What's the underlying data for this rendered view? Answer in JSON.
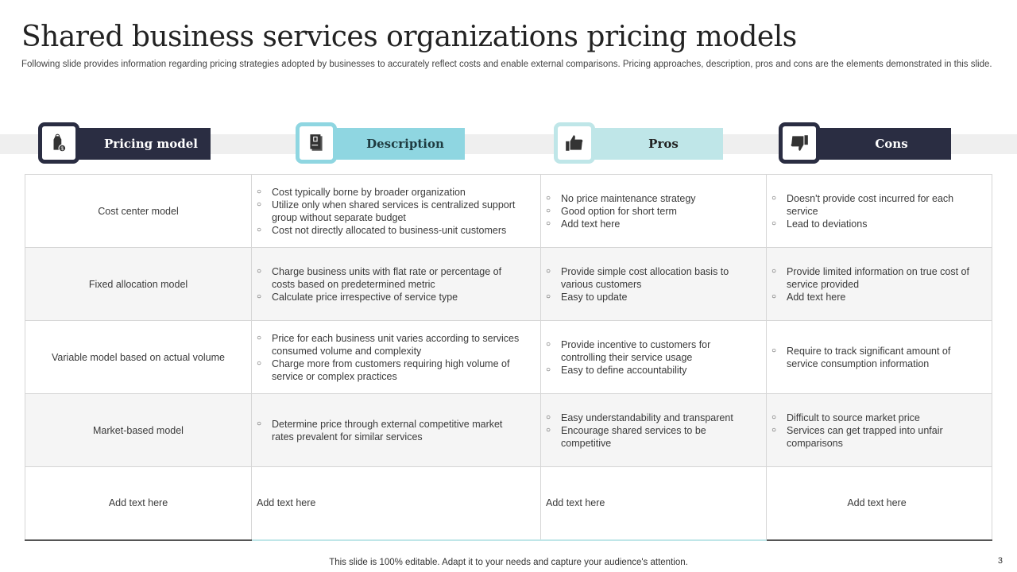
{
  "title": "Shared business services organizations pricing models",
  "subtitle": "Following slide provides information regarding pricing strategies adopted by businesses to accurately reflect costs and enable external comparisons. Pricing approaches, description, pros and cons are the elements demonstrated in this slide.",
  "headers": [
    {
      "label": "Pricing model",
      "icon": "price-tag-dollar-icon",
      "color": "#2a2d42"
    },
    {
      "label": "Description",
      "icon": "document-icon",
      "color": "#8fd6e1"
    },
    {
      "label": "Pros",
      "icon": "thumbs-up-icon",
      "color": "#bfe6e8"
    },
    {
      "label": "Cons",
      "icon": "thumbs-down-icon",
      "color": "#2a2d42"
    }
  ],
  "rows": [
    {
      "model": "Cost center model",
      "description": [
        "Cost typically borne by broader organization",
        "Utilize only when shared services is centralized support group without separate budget",
        "Cost not directly allocated to business-unit customers"
      ],
      "pros": [
        "No price maintenance strategy",
        "Good option for short term",
        "Add text here"
      ],
      "cons": [
        "Doesn't provide cost incurred for each service",
        "Lead to deviations"
      ]
    },
    {
      "model": "Fixed allocation model",
      "description": [
        "Charge business units with flat rate or percentage of costs based on predetermined metric",
        "Calculate price irrespective of service type"
      ],
      "pros": [
        "Provide simple cost allocation basis to various customers",
        "Easy to update"
      ],
      "cons": [
        "Provide limited information on true cost of service provided",
        "Add text here"
      ]
    },
    {
      "model": "Variable model based on actual volume",
      "description": [
        "Price for each business unit varies according to services consumed volume and complexity",
        "Charge more from customers requiring high volume of service or complex practices"
      ],
      "pros": [
        "Provide incentive to customers for controlling their service usage",
        "Easy to define accountability"
      ],
      "cons": [
        "Require to track significant amount of service consumption information"
      ]
    },
    {
      "model": "Market-based model",
      "description": [
        "Determine price through external competitive market rates prevalent for similar services"
      ],
      "pros": [
        "Easy understandability and transparent",
        "Encourage shared services to be competitive"
      ],
      "cons": [
        "Difficult to source market price",
        "Services can get trapped into unfair comparisons"
      ]
    }
  ],
  "last_row": [
    "Add text here",
    "Add text here",
    "Add text here",
    "Add text here"
  ],
  "footer": "This slide is 100% editable. Adapt it to your needs and capture your audience's attention.",
  "page_number": "3"
}
